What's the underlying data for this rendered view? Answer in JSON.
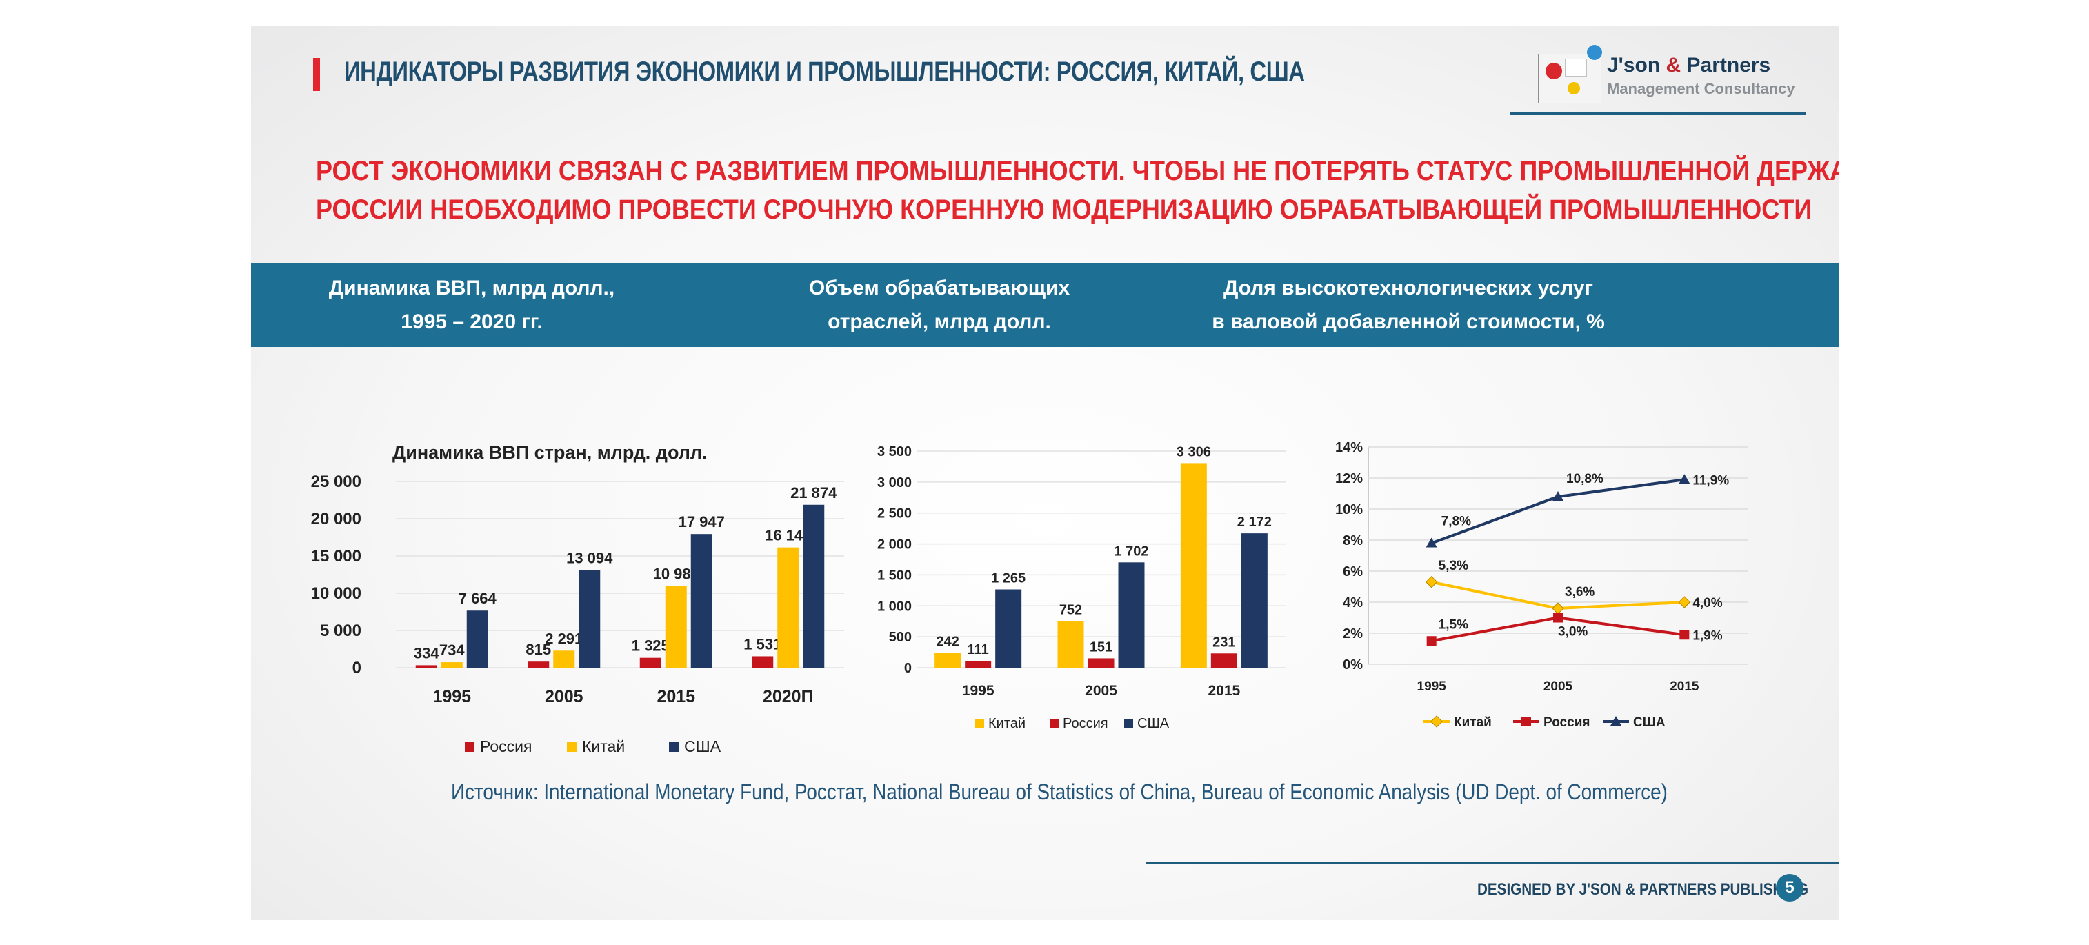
{
  "header": {
    "title": "ИНДИКАТОРЫ РАЗВИТИЯ ЭКОНОМИКИ И ПРОМЫШЛЕННОСТИ: РОССИЯ, КИТАЙ, США",
    "subtitle_line1": "РОСТ ЭКОНОМИКИ СВЯЗАН С РАЗВИТИЕМ ПРОМЫШЛЕННОСТИ. ЧТОБЫ НЕ ПОТЕРЯТЬ СТАТУС ПРОМЫШЛЕННОЙ ДЕРЖАВЫ",
    "subtitle_line2": "РОССИИ НЕОБХОДИМО ПРОВЕСТИ СРОЧНУЮ КОРЕННУЮ МОДЕРНИЗАЦИЮ ОБРАБАТЫВАЮЩЕЙ ПРОМЫШЛЕННОСТИ"
  },
  "logo": {
    "name_part1": "J'son",
    "name_amp": "&",
    "name_part2": "Partners",
    "subtitle": "Management Consultancy"
  },
  "band": {
    "col1": "Динамика ВВП, млрд долл.,\n1995 – 2020 гг.",
    "col2": "Объем обрабатывающих\nотраслей, млрд долл.",
    "col3": "Доля высокотехнологических услуг\nв валовой добавленной стоимости, %"
  },
  "source": "Источник:  International Monetary Fund, Росстат, National Bureau of Statistics of China, Bureau of Economic Analysis (UD Dept. of Commerce)",
  "footer": {
    "text": "DESIGNED BY J'SON & PARTNERS PUBLISHING",
    "page": "5"
  },
  "colors": {
    "russia": "#c4161c",
    "china": "#ffc000",
    "usa": "#1f3864",
    "title": "#1f4e6e",
    "accent_red": "#e3262d",
    "band": "#1e6f94"
  },
  "chart_data": [
    {
      "type": "bar",
      "title": "Динамика ВВП стран, млрд. долл.",
      "categories": [
        "1995",
        "2005",
        "2015",
        "2020П"
      ],
      "series": [
        {
          "name": "Россия",
          "values": [
            334,
            815,
            1325,
            1531
          ],
          "labels": [
            "334",
            "815",
            "1 325",
            "1 531"
          ]
        },
        {
          "name": "Китай",
          "values": [
            734,
            2291,
            10983,
            16144
          ],
          "labels": [
            "734",
            "2 291",
            "10 983",
            "16 144"
          ]
        },
        {
          "name": "США",
          "values": [
            7664,
            13094,
            17947,
            21874
          ],
          "labels": [
            "7 664",
            "13 094",
            "17 947",
            "21 874"
          ]
        }
      ],
      "ylim": [
        0,
        25000
      ],
      "yticks": [
        "0",
        "5 000",
        "10 000",
        "15 000",
        "20 000",
        "25 000"
      ],
      "legend": [
        "Россия",
        "Китай",
        "США"
      ],
      "legend_position": "bottom"
    },
    {
      "type": "bar",
      "title": "",
      "categories": [
        "1995",
        "2005",
        "2015"
      ],
      "series": [
        {
          "name": "Китай",
          "values": [
            242,
            752,
            3306
          ],
          "labels": [
            "242",
            "752",
            "3 306"
          ]
        },
        {
          "name": "Россия",
          "values": [
            111,
            151,
            231
          ],
          "labels": [
            "111",
            "151",
            "231"
          ]
        },
        {
          "name": "США",
          "values": [
            1265,
            1702,
            2172
          ],
          "labels": [
            "1 265",
            "1 702",
            "2 172"
          ]
        }
      ],
      "ylim": [
        0,
        3500
      ],
      "yticks": [
        "0",
        "500",
        "1 000",
        "1 500",
        "2 000",
        "2 500",
        "3 000",
        "3 500"
      ],
      "legend": [
        "Китай",
        "Россия",
        "США"
      ],
      "legend_position": "bottom"
    },
    {
      "type": "line",
      "title": "",
      "categories": [
        "1995",
        "2005",
        "2015"
      ],
      "series": [
        {
          "name": "Китай",
          "values": [
            5.3,
            3.6,
            4.0
          ],
          "labels": [
            "5,3%",
            "3,6%",
            "4,0%"
          ]
        },
        {
          "name": "Россия",
          "values": [
            1.5,
            3.0,
            1.9
          ],
          "labels": [
            "1,5%",
            "3,0%",
            "1,9%"
          ]
        },
        {
          "name": "США",
          "values": [
            7.8,
            10.8,
            11.9
          ],
          "labels": [
            "7,8%",
            "10,8%",
            "11,9%"
          ]
        }
      ],
      "ylim": [
        0,
        14
      ],
      "yticks": [
        "0%",
        "2%",
        "4%",
        "6%",
        "8%",
        "10%",
        "12%",
        "14%"
      ],
      "legend": [
        "Китай",
        "Россия",
        "США"
      ],
      "legend_position": "bottom"
    }
  ]
}
